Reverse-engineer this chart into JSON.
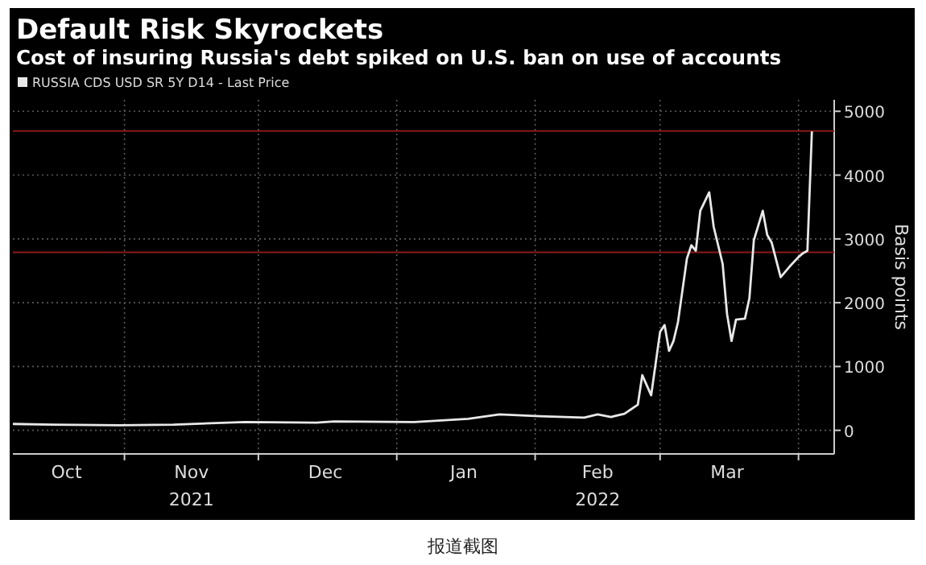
{
  "chart_data": {
    "type": "line",
    "title": "Default Risk Skyrockets",
    "subtitle": "Cost of insuring Russia's debt spiked on U.S. ban on use of accounts",
    "ylabel": "Basis points",
    "x": [
      "2021-10-07",
      "2021-10-16",
      "2021-10-31",
      "2021-11-12",
      "2021-11-28",
      "2021-12-14",
      "2021-12-18",
      "2022-01-05",
      "2022-01-17",
      "2022-01-24",
      "2022-02-02",
      "2022-02-12",
      "2022-02-15",
      "2022-02-18",
      "2022-02-21",
      "2022-02-24",
      "2022-02-25",
      "2022-02-27",
      "2022-03-01",
      "2022-03-02",
      "2022-03-03",
      "2022-03-04",
      "2022-03-05",
      "2022-03-07",
      "2022-03-08",
      "2022-03-09",
      "2022-03-10",
      "2022-03-12",
      "2022-03-13",
      "2022-03-15",
      "2022-03-16",
      "2022-03-17",
      "2022-03-18",
      "2022-03-20",
      "2022-03-21",
      "2022-03-22",
      "2022-03-24",
      "2022-03-25",
      "2022-03-26",
      "2022-03-28",
      "2022-03-30",
      "2022-04-01",
      "2022-04-02",
      "2022-04-03",
      "2022-04-04"
    ],
    "series": [
      {
        "name": "RUSSIA CDS USD SR 5Y D14 - Last Price",
        "color": "#e8e8e8",
        "values": [
          100,
          90,
          80,
          90,
          130,
          120,
          140,
          130,
          180,
          250,
          220,
          200,
          250,
          210,
          260,
          400,
          865,
          550,
          1545,
          1650,
          1245,
          1400,
          1695,
          2690,
          2900,
          2815,
          3440,
          3730,
          3190,
          2610,
          1820,
          1400,
          1735,
          1750,
          2070,
          2980,
          3440,
          3060,
          2940,
          2400,
          2565,
          2715,
          2775,
          2815,
          4685
        ]
      }
    ],
    "xlim": [
      "2021-10-07",
      "2022-04-09"
    ],
    "xticks": [
      {
        "value": "2021-10-19",
        "label": "Oct"
      },
      {
        "value": "2021-11-01",
        "label": null
      },
      {
        "value": "2021-11-16",
        "label": "Nov\n2021"
      },
      {
        "value": "2021-12-01",
        "label": null
      },
      {
        "value": "2021-12-16",
        "label": "Dec"
      },
      {
        "value": "2022-01-01",
        "label": null
      },
      {
        "value": "2022-01-16",
        "label": "Jan"
      },
      {
        "value": "2022-02-01",
        "label": null
      },
      {
        "value": "2022-02-15",
        "label": "Feb\n2022"
      },
      {
        "value": "2022-03-01",
        "label": null
      },
      {
        "value": "2022-03-16",
        "label": "Mar"
      },
      {
        "value": "2022-04-01",
        "label": null
      }
    ],
    "ylim": [
      -370,
      5180
    ],
    "yticks": [
      0,
      1000,
      2000,
      3000,
      4000,
      5000
    ],
    "ref_lines": [
      {
        "axis": "y",
        "value": 4690,
        "label": null,
        "color": "#8b1a1a"
      },
      {
        "axis": "y",
        "value": 2790,
        "label": null,
        "color": "#8b1a1a"
      }
    ],
    "grid": true,
    "legend": "top left",
    "annotations": [
      "报道截图"
    ]
  }
}
